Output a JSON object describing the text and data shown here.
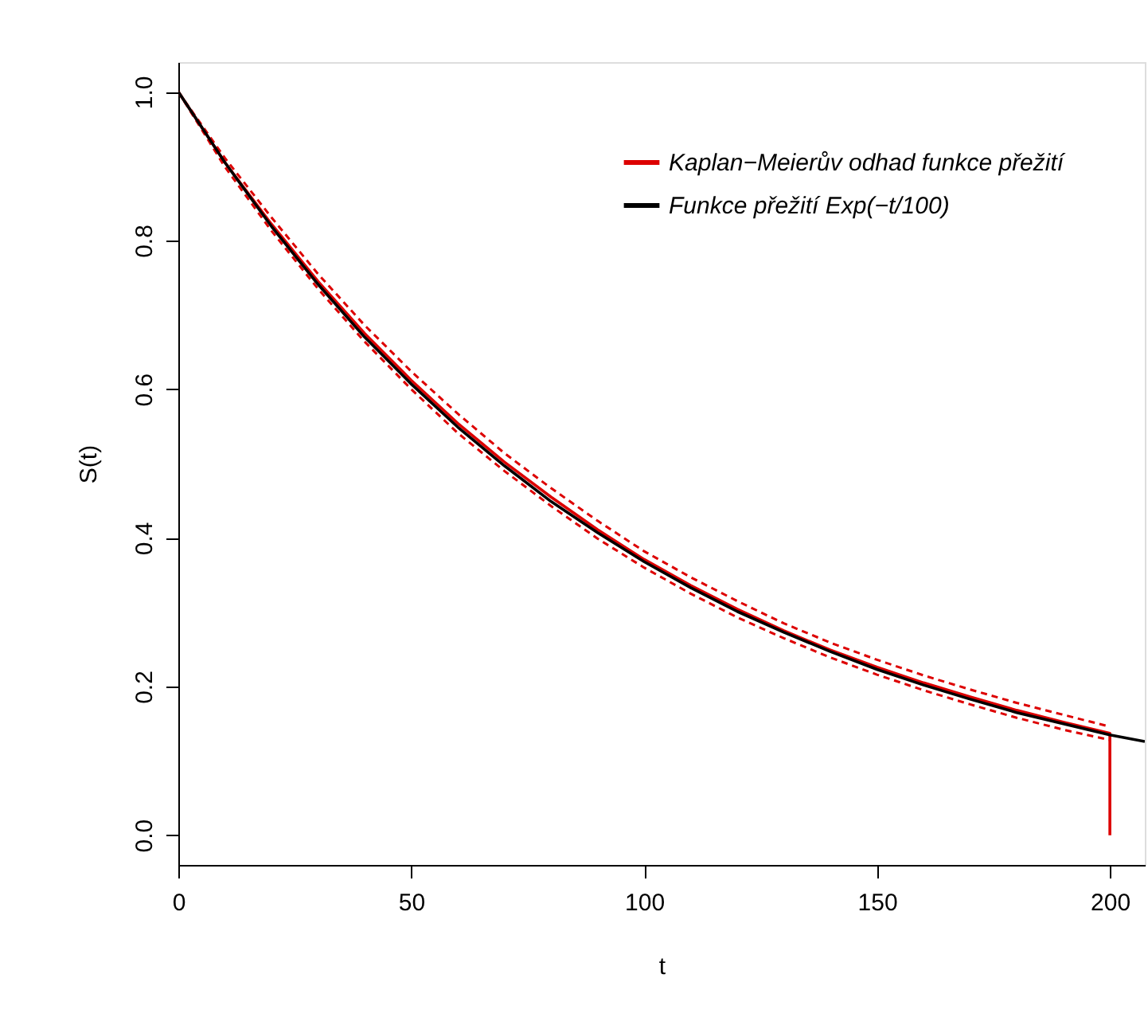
{
  "chart_data": {
    "type": "line",
    "xlabel": "t",
    "ylabel": "S(t)",
    "xlim": [
      0,
      207.5
    ],
    "ylim": [
      -0.04,
      1.04
    ],
    "xticks": [
      0,
      50,
      100,
      150,
      200
    ],
    "yticks": [
      {
        "value": 0,
        "label": "0.0"
      },
      0.2,
      0.4,
      0.6,
      0.8,
      {
        "value": 1,
        "label": "1.0"
      }
    ],
    "grid": false,
    "legend": "top right",
    "marker": "none",
    "line_style": "solid",
    "series": [
      {
        "name": "Kaplan−Meierův odhad funkce přežití",
        "color": "#dd0000",
        "x": [
          0,
          10,
          20,
          30,
          40,
          50,
          60,
          70,
          80,
          90,
          100,
          110,
          120,
          130,
          140,
          150,
          160,
          170,
          180,
          190,
          200,
          200
        ],
        "values": [
          1.0,
          0.905,
          0.822,
          0.745,
          0.675,
          0.612,
          0.554,
          0.502,
          0.455,
          0.411,
          0.371,
          0.336,
          0.304,
          0.275,
          0.249,
          0.226,
          0.205,
          0.186,
          0.168,
          0.152,
          0.137,
          0.0
        ]
      },
      {
        "color": "#dd0000",
        "line_style": "dashed",
        "x": [
          0,
          10,
          20,
          30,
          40,
          50,
          60,
          70,
          80,
          90,
          100,
          110,
          120,
          130,
          140,
          150,
          160,
          170,
          180,
          190,
          200
        ],
        "values": [
          1.0,
          0.899,
          0.813,
          0.735,
          0.664,
          0.6,
          0.541,
          0.49,
          0.443,
          0.399,
          0.36,
          0.325,
          0.293,
          0.265,
          0.239,
          0.216,
          0.195,
          0.176,
          0.158,
          0.142,
          0.128
        ]
      },
      {
        "color": "#dd0000",
        "line_style": "dashed",
        "x": [
          0,
          10,
          20,
          30,
          40,
          50,
          60,
          70,
          80,
          90,
          100,
          110,
          120,
          130,
          140,
          150,
          160,
          170,
          180,
          190,
          200
        ],
        "values": [
          1.0,
          0.911,
          0.831,
          0.755,
          0.686,
          0.624,
          0.567,
          0.514,
          0.467,
          0.423,
          0.382,
          0.347,
          0.315,
          0.285,
          0.259,
          0.236,
          0.215,
          0.196,
          0.178,
          0.162,
          0.146
        ]
      },
      {
        "name": "Funkce přežití Exp(−t/100)",
        "color": "#000000",
        "x": [
          0,
          10,
          20,
          30,
          40,
          50,
          60,
          70,
          80,
          90,
          100,
          110,
          120,
          130,
          140,
          150,
          160,
          170,
          180,
          190,
          200,
          207.5
        ],
        "values": [
          1.0,
          0.905,
          0.819,
          0.741,
          0.67,
          0.607,
          0.549,
          0.497,
          0.449,
          0.407,
          0.368,
          0.333,
          0.301,
          0.273,
          0.247,
          0.223,
          0.202,
          0.183,
          0.165,
          0.15,
          0.135,
          0.126
        ]
      }
    ]
  }
}
